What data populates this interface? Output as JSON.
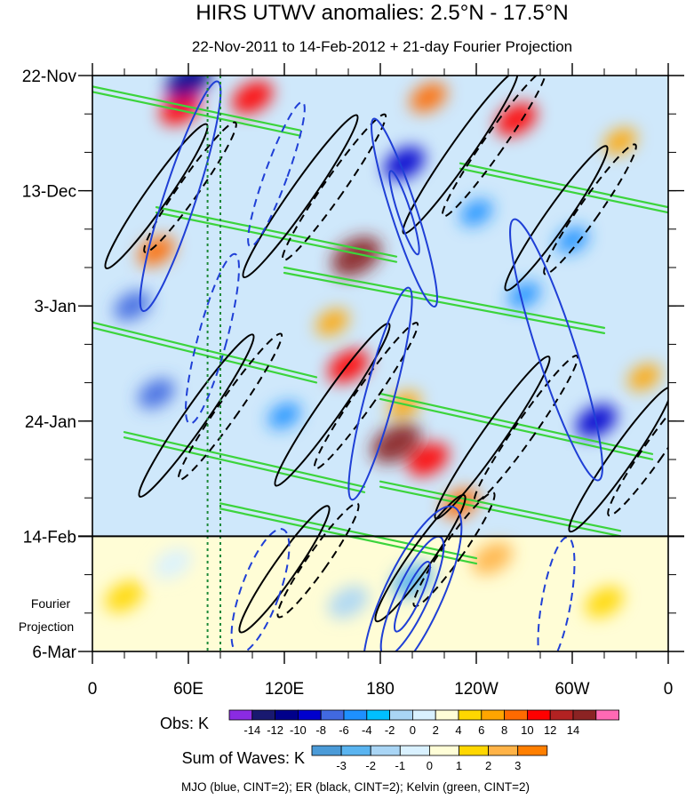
{
  "chart_data": {
    "type": "heatmap",
    "title": "HIRS UTWV anomalies: 2.5°N - 17.5°N",
    "subtitle": "22-Nov-2011 to 14-Feb-2012 + 21-day Fourier Projection",
    "x_axis": {
      "ticks": [
        {
          "lon": 0,
          "label": "0"
        },
        {
          "lon": 60,
          "label": "60E"
        },
        {
          "lon": 120,
          "label": "120E"
        },
        {
          "lon": 180,
          "label": "180"
        },
        {
          "lon": 240,
          "label": "120W"
        },
        {
          "lon": 300,
          "label": "60W"
        },
        {
          "lon": 360,
          "label": "0"
        }
      ],
      "range": [
        0,
        360
      ]
    },
    "y_axis": {
      "ticks": [
        {
          "day": 0,
          "label": "22-Nov"
        },
        {
          "day": 21,
          "label": "13-Dec"
        },
        {
          "day": 42,
          "label": "3-Jan"
        },
        {
          "day": 63,
          "label": "24-Jan"
        },
        {
          "day": 84,
          "label": "14-Feb"
        },
        {
          "day": 105,
          "label": "6-Mar"
        }
      ],
      "range_days": [
        0,
        105
      ],
      "observation_end_day": 84,
      "projection_label": [
        "Fourier",
        "Projection"
      ]
    },
    "obs_colorbar": {
      "label": "Obs: K",
      "levels": [
        "-14",
        "-12",
        "-10",
        "-8",
        "-6",
        "-4",
        "-2",
        "0",
        "2",
        "4",
        "6",
        "8",
        "10",
        "12",
        "14"
      ],
      "colors": [
        "#8a2be2",
        "#191970",
        "#00008b",
        "#0000cd",
        "#4169e1",
        "#1e90ff",
        "#00bfff",
        "#a9d5f5",
        "#d9f1ff",
        "#fffed7",
        "#ffd700",
        "#ffa500",
        "#ff6a00",
        "#ff0000",
        "#b22222",
        "#8b2323",
        "#ff69b4"
      ]
    },
    "waves_colorbar": {
      "label": "Sum of Waves: K",
      "levels": [
        "-3",
        "-2",
        "-1",
        "0",
        "1",
        "2",
        "3"
      ],
      "colors": [
        "#4b9bd8",
        "#5ab4f0",
        "#a9d5f5",
        "#d9f1ff",
        "#fffed7",
        "#ffd700",
        "#ffb347",
        "#ff7f00"
      ]
    },
    "overlays": [
      {
        "name": "MJO",
        "color": "blue",
        "cint": 2
      },
      {
        "name": "ER",
        "color": "black",
        "cint": 2
      },
      {
        "name": "Kelvin",
        "color": "green",
        "cint": 2
      }
    ],
    "highlight_lons": [
      72,
      80
    ],
    "anomaly_features": [
      {
        "lon": 165,
        "day": 33,
        "value": 14
      },
      {
        "lon": 190,
        "day": 67,
        "value": 14
      },
      {
        "lon": 160,
        "day": 53,
        "value": 10
      },
      {
        "lon": 55,
        "day": 6,
        "value": 10
      },
      {
        "lon": 100,
        "day": 4,
        "value": 10
      },
      {
        "lon": 265,
        "day": 8,
        "value": 10
      },
      {
        "lon": 210,
        "day": 70,
        "value": 10
      },
      {
        "lon": 40,
        "day": 32,
        "value": 8
      },
      {
        "lon": 210,
        "day": 4,
        "value": 8
      },
      {
        "lon": 230,
        "day": 78,
        "value": 8
      },
      {
        "lon": 150,
        "day": 45,
        "value": 6
      },
      {
        "lon": 195,
        "day": 60,
        "value": 6
      },
      {
        "lon": 330,
        "day": 12,
        "value": 6
      },
      {
        "lon": 345,
        "day": 55,
        "value": 6
      },
      {
        "lon": 60,
        "day": 1,
        "value": -12
      },
      {
        "lon": 195,
        "day": 16,
        "value": -10
      },
      {
        "lon": 315,
        "day": 63,
        "value": -10
      },
      {
        "lon": 25,
        "day": 42,
        "value": -8
      },
      {
        "lon": 40,
        "day": 58,
        "value": -8
      },
      {
        "lon": 270,
        "day": 40,
        "value": -6
      },
      {
        "lon": 240,
        "day": 25,
        "value": -6
      },
      {
        "lon": 120,
        "day": 62,
        "value": -6
      },
      {
        "lon": 300,
        "day": 30,
        "value": -6
      },
      {
        "lon": 200,
        "day": 92,
        "value": -3
      },
      {
        "lon": 160,
        "day": 96,
        "value": -2
      },
      {
        "lon": 50,
        "day": 89,
        "value": -1
      },
      {
        "lon": 250,
        "day": 88,
        "value": 2
      },
      {
        "lon": 320,
        "day": 96,
        "value": 1
      },
      {
        "lon": 20,
        "day": 95,
        "value": 1
      }
    ],
    "mjo_contours": [
      {
        "lon": 55,
        "day": 22,
        "rx": 10,
        "ry": 22,
        "rot": 18,
        "dash": false
      },
      {
        "lon": 115,
        "day": 18,
        "rx": 7,
        "ry": 14,
        "rot": 20,
        "dash": true
      },
      {
        "lon": 195,
        "day": 25,
        "rx": 8,
        "ry": 18,
        "rot": -18,
        "dash": false
      },
      {
        "lon": 195,
        "day": 25,
        "rx": 4,
        "ry": 8,
        "rot": -18,
        "dash": false
      },
      {
        "lon": 180,
        "day": 58,
        "rx": 9,
        "ry": 20,
        "rot": 15,
        "dash": false
      },
      {
        "lon": 290,
        "day": 50,
        "rx": 12,
        "ry": 25,
        "rot": -18,
        "dash": false
      },
      {
        "lon": 75,
        "day": 48,
        "rx": 9,
        "ry": 16,
        "rot": 15,
        "dash": true
      },
      {
        "lon": 200,
        "day": 95,
        "rx": 18,
        "ry": 18,
        "rot": 25,
        "dash": false
      },
      {
        "lon": 200,
        "day": 95,
        "rx": 10,
        "ry": 12,
        "rot": 25,
        "dash": false
      },
      {
        "lon": 200,
        "day": 95,
        "rx": 5,
        "ry": 7,
        "rot": 25,
        "dash": false
      },
      {
        "lon": 105,
        "day": 94,
        "rx": 12,
        "ry": 12,
        "rot": 20,
        "dash": true
      },
      {
        "lon": 290,
        "day": 96,
        "rx": 9,
        "ry": 12,
        "rot": 10,
        "dash": true
      }
    ],
    "er_contours": [
      {
        "lon": 40,
        "day": 22,
        "rx": 7,
        "ry": 16,
        "rot": 35
      },
      {
        "lon": 130,
        "day": 22,
        "rx": 7,
        "ry": 18,
        "rot": 35
      },
      {
        "lon": 230,
        "day": 14,
        "rx": 7,
        "ry": 18,
        "rot": 35
      },
      {
        "lon": 290,
        "day": 26,
        "rx": 7,
        "ry": 16,
        "rot": 35
      },
      {
        "lon": 65,
        "day": 62,
        "rx": 7,
        "ry": 18,
        "rot": 35
      },
      {
        "lon": 150,
        "day": 60,
        "rx": 7,
        "ry": 18,
        "rot": 35
      },
      {
        "lon": 250,
        "day": 66,
        "rx": 7,
        "ry": 18,
        "rot": 35
      },
      {
        "lon": 330,
        "day": 70,
        "rx": 7,
        "ry": 16,
        "rot": 35
      },
      {
        "lon": 120,
        "day": 90,
        "rx": 7,
        "ry": 14,
        "rot": 35
      },
      {
        "lon": 205,
        "day": 88,
        "rx": 7,
        "ry": 14,
        "rot": 35
      }
    ],
    "kelvin_bands": [
      {
        "lon1": 40,
        "day1": 24,
        "lon2": 190,
        "day2": 33
      },
      {
        "lon1": 0,
        "day1": 45,
        "lon2": 140,
        "day2": 55
      },
      {
        "lon1": 120,
        "day1": 35,
        "lon2": 320,
        "day2": 46
      },
      {
        "lon1": 20,
        "day1": 65,
        "lon2": 170,
        "day2": 75
      },
      {
        "lon1": 80,
        "day1": 78,
        "lon2": 240,
        "day2": 88
      },
      {
        "lon1": 180,
        "day1": 58,
        "lon2": 350,
        "day2": 69
      },
      {
        "lon1": 230,
        "day1": 16,
        "lon2": 360,
        "day2": 24
      },
      {
        "lon1": 0,
        "day1": 2,
        "lon2": 130,
        "day2": 10
      },
      {
        "lon1": 180,
        "day1": 74,
        "lon2": 330,
        "day2": 83
      }
    ]
  },
  "footer_note": "MJO (blue, CINT=2); ER (black, CINT=2); Kelvin (green, CINT=2)"
}
